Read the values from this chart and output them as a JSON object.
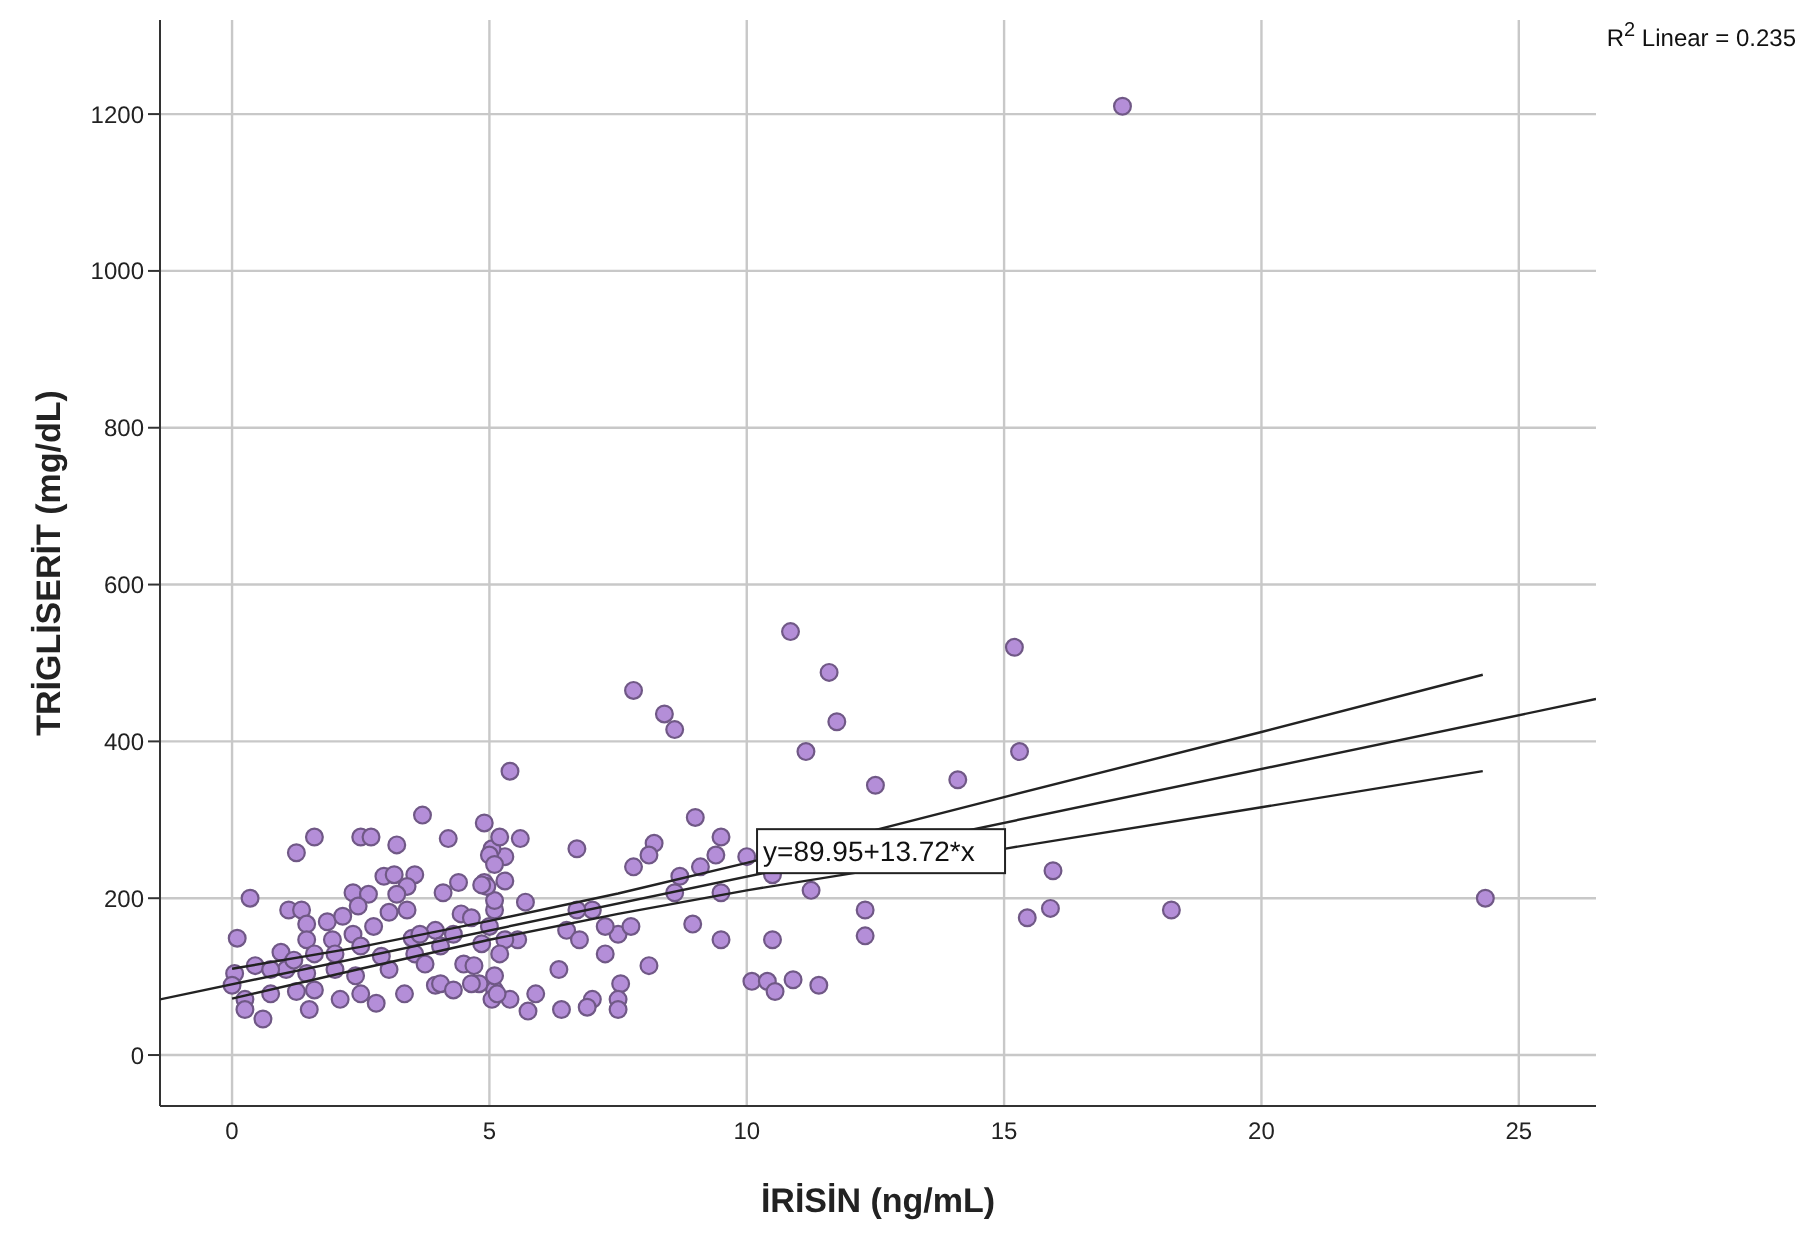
{
  "chart_data": {
    "type": "scatter",
    "xlabel": "İRİSİN (ng/mL)",
    "ylabel": "TRİGLİSERİT (mg/dL)",
    "xlim": [
      -1.4,
      26.5
    ],
    "xticks": [
      0,
      5,
      10,
      15,
      20,
      25
    ],
    "ylim": [
      -65,
      1320
    ],
    "yticks": [
      0,
      200,
      400,
      600,
      800,
      1000,
      1200
    ],
    "grid": true,
    "marker": "circle",
    "annotations": [
      {
        "text": "y=89.95+13.72*x",
        "x": 10.2,
        "y": 260
      },
      "R$^{2}$ Linear = 0.235"
    ],
    "series": [
      {
        "type": "scatter",
        "color": "#b48ed8",
        "x": [
          17.3,
          10.85,
          15.2,
          7.8,
          11.6,
          8.4,
          8.6,
          11.75,
          5.4,
          11.15,
          15.3,
          14.1,
          12.5,
          3.7,
          1.6,
          2.5,
          2.7,
          4.2,
          4.9,
          9.0,
          6.7,
          5.6,
          9.5,
          8.2,
          8.1,
          7.8,
          8.7,
          9.1,
          9.4,
          10.0,
          10.5,
          15.95,
          8.6,
          8.95,
          9.5,
          10.5,
          9.5,
          11.25,
          12.3,
          12.3,
          15.45,
          15.9,
          18.25,
          24.35,
          10.1,
          10.4,
          10.55,
          10.9,
          11.4,
          8.1,
          7.55,
          7.5,
          7.5,
          7.0,
          6.9,
          6.4,
          5.9,
          5.75,
          5.1,
          5.05,
          4.8,
          5.4,
          6.35,
          7.25,
          6.5,
          6.75,
          7.5,
          7.75,
          7.25,
          7.0,
          6.7,
          5.7,
          5.55,
          5.3,
          5.0,
          5.1,
          5.1,
          5.3,
          5.3,
          5.05,
          4.9,
          1.25,
          3.2,
          5.2,
          5.0,
          5.1,
          0.35,
          0.1,
          1.1,
          1.35,
          1.45,
          1.85,
          2.15,
          2.35,
          2.65,
          2.45,
          2.95,
          3.15,
          3.55,
          3.4,
          3.2,
          3.4,
          3.05,
          4.1,
          4.4,
          4.95,
          4.85,
          4.45,
          4.65,
          3.95,
          4.3,
          3.5,
          2.75,
          2.35,
          1.95,
          1.45,
          0.95,
          0.45,
          0.05,
          0.0,
          0.25,
          0.25,
          0.6,
          0.75,
          1.25,
          1.5,
          2.1,
          1.6,
          2.5,
          2.8,
          3.35,
          3.05,
          2.4,
          2.0,
          1.45,
          1.05,
          0.75,
          3.95,
          4.05,
          4.3,
          4.65,
          5.1,
          5.15,
          1.6,
          2.0,
          2.5,
          2.9,
          3.55,
          3.75,
          4.5,
          4.7,
          5.2,
          1.2,
          3.65,
          4.05,
          4.85
        ],
        "values": [
          1210,
          540,
          520,
          465,
          488,
          435,
          415,
          425,
          362,
          387,
          387,
          351,
          344,
          306,
          278,
          278,
          278,
          276,
          296,
          303,
          263,
          276,
          278,
          270,
          255,
          240,
          228,
          240,
          255,
          253,
          230,
          235,
          207,
          167,
          147,
          147,
          207,
          210,
          185,
          152,
          175,
          187,
          185,
          200,
          94,
          94,
          81,
          96,
          89,
          114,
          91,
          71,
          58,
          71,
          61,
          58,
          78,
          56,
          83,
          71,
          91,
          71,
          109,
          129,
          159,
          147,
          154,
          164,
          164,
          185,
          185,
          195,
          147,
          147,
          164,
          185,
          197,
          222,
          253,
          263,
          220,
          258,
          268,
          278,
          255,
          243,
          200,
          149,
          185,
          185,
          167,
          170,
          177,
          207,
          205,
          190,
          228,
          230,
          230,
          215,
          205,
          185,
          182,
          207,
          220,
          215,
          217,
          180,
          175,
          159,
          154,
          149,
          164,
          154,
          147,
          147,
          131,
          114,
          104,
          89,
          71,
          58,
          46,
          78,
          81,
          58,
          71,
          83,
          78,
          66,
          78,
          109,
          101,
          109,
          104,
          109,
          109,
          89,
          91,
          83,
          91,
          101,
          78,
          129,
          129,
          139,
          126,
          129,
          116,
          116,
          114,
          129,
          121,
          154,
          139,
          142
        ]
      },
      {
        "type": "line",
        "color": "#222222",
        "marker": "none",
        "x": [
          -1.4,
          26.5
        ],
        "values": [
          71,
          454
        ]
      },
      {
        "type": "line",
        "color": "#222222",
        "marker": "none",
        "x": [
          0,
          2.5,
          5,
          7.5,
          10,
          15,
          20,
          24.3
        ],
        "values": [
          110,
          138,
          171,
          206,
          245,
          329,
          412,
          485
        ]
      },
      {
        "type": "line",
        "color": "#222222",
        "marker": "none",
        "x": [
          0,
          2.5,
          5,
          7.5,
          10,
          15,
          20,
          24.3
        ],
        "values": [
          72,
          110,
          147,
          180,
          210,
          263,
          316,
          362
        ]
      }
    ]
  }
}
